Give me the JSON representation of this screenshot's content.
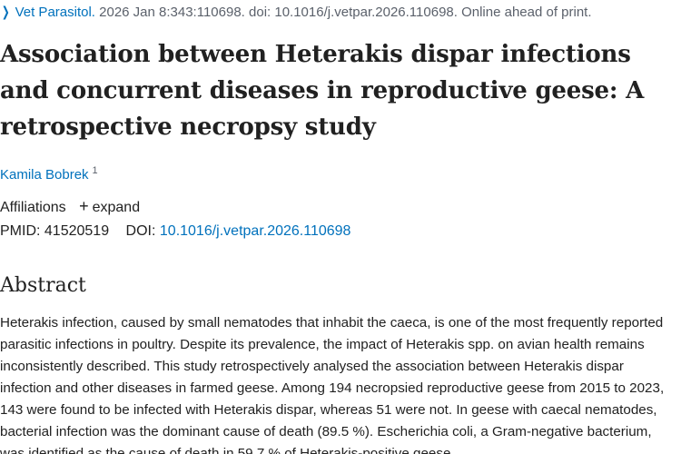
{
  "citation": {
    "chevron": "chevron-right-icon",
    "journal": "Vet Parasitol.",
    "details": " 2026 Jan 8:343:110698. doi: 10.1016/j.vetpar.2026.110698. Online ahead of print."
  },
  "article": {
    "title": "Association between Heterakis dispar infections and concurrent diseases in reproductive geese: A retrospective necropsy study",
    "author_name": "Kamila Bobrek",
    "author_affiliation_number": "1"
  },
  "affiliations": {
    "label": "Affiliations",
    "expand_label": "expand"
  },
  "identifiers": {
    "pmid_label": "PMID:",
    "pmid_value": "41520519",
    "doi_label": "DOI:",
    "doi_value": "10.1016/j.vetpar.2026.110698"
  },
  "abstract": {
    "heading": "Abstract",
    "text": "Heterakis infection, caused by small nematodes that inhabit the caeca, is one of the most frequently reported parasitic infections in poultry. Despite its prevalence, the impact of Heterakis spp. on avian health remains inconsistently described. This study retrospectively analysed the association between Heterakis dispar infection and other diseases in farmed geese. Among 194 necropsied reproductive geese from 2015 to 2023, 143 were found to be infected with Heterakis dispar, whereas 51 were not. In geese with caecal nematodes, bacterial infection was the dominant cause of death (89.5 %). Escherichia coli, a Gram-negative bacterium, was identified as the cause of death in 59.7 % of Heterakis-positive geese."
  }
}
